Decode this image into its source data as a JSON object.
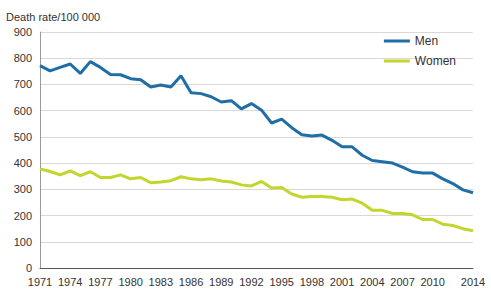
{
  "chart_data": {
    "type": "line",
    "y_label": "Death rate/100 000",
    "categories": [
      "1971",
      null,
      null,
      "1974",
      null,
      null,
      "1977",
      null,
      null,
      "1980",
      null,
      null,
      "1983",
      null,
      null,
      "1986",
      null,
      null,
      "1989",
      null,
      null,
      "1992",
      null,
      null,
      "1995",
      null,
      null,
      "1998",
      null,
      null,
      "2001",
      null,
      null,
      "2004",
      null,
      null,
      "2007",
      null,
      null,
      "2010",
      null,
      null,
      null,
      "2014"
    ],
    "series": [
      {
        "name": "Men",
        "color": "#1f6ea6",
        "values": [
          772,
          752,
          765,
          778,
          742,
          787,
          765,
          738,
          737,
          722,
          718,
          690,
          698,
          690,
          733,
          668,
          665,
          653,
          633,
          638,
          607,
          627,
          602,
          553,
          568,
          535,
          508,
          503,
          507,
          487,
          462,
          462,
          430,
          410,
          405,
          400,
          385,
          367,
          362,
          362,
          340,
          322,
          298,
          287
        ]
      },
      {
        "name": "Women",
        "color": "#c2d62e",
        "values": [
          378,
          368,
          355,
          370,
          352,
          367,
          345,
          345,
          355,
          340,
          345,
          325,
          328,
          333,
          348,
          340,
          337,
          340,
          332,
          328,
          317,
          313,
          330,
          305,
          307,
          282,
          270,
          273,
          273,
          270,
          260,
          263,
          247,
          220,
          220,
          208,
          208,
          203,
          185,
          185,
          167,
          162,
          150,
          142
        ]
      }
    ],
    "ylim": [
      0,
      900
    ],
    "yticks": [
      0,
      100,
      200,
      300,
      400,
      500,
      600,
      700,
      800,
      900
    ],
    "grid": true,
    "legend": "upper right"
  }
}
